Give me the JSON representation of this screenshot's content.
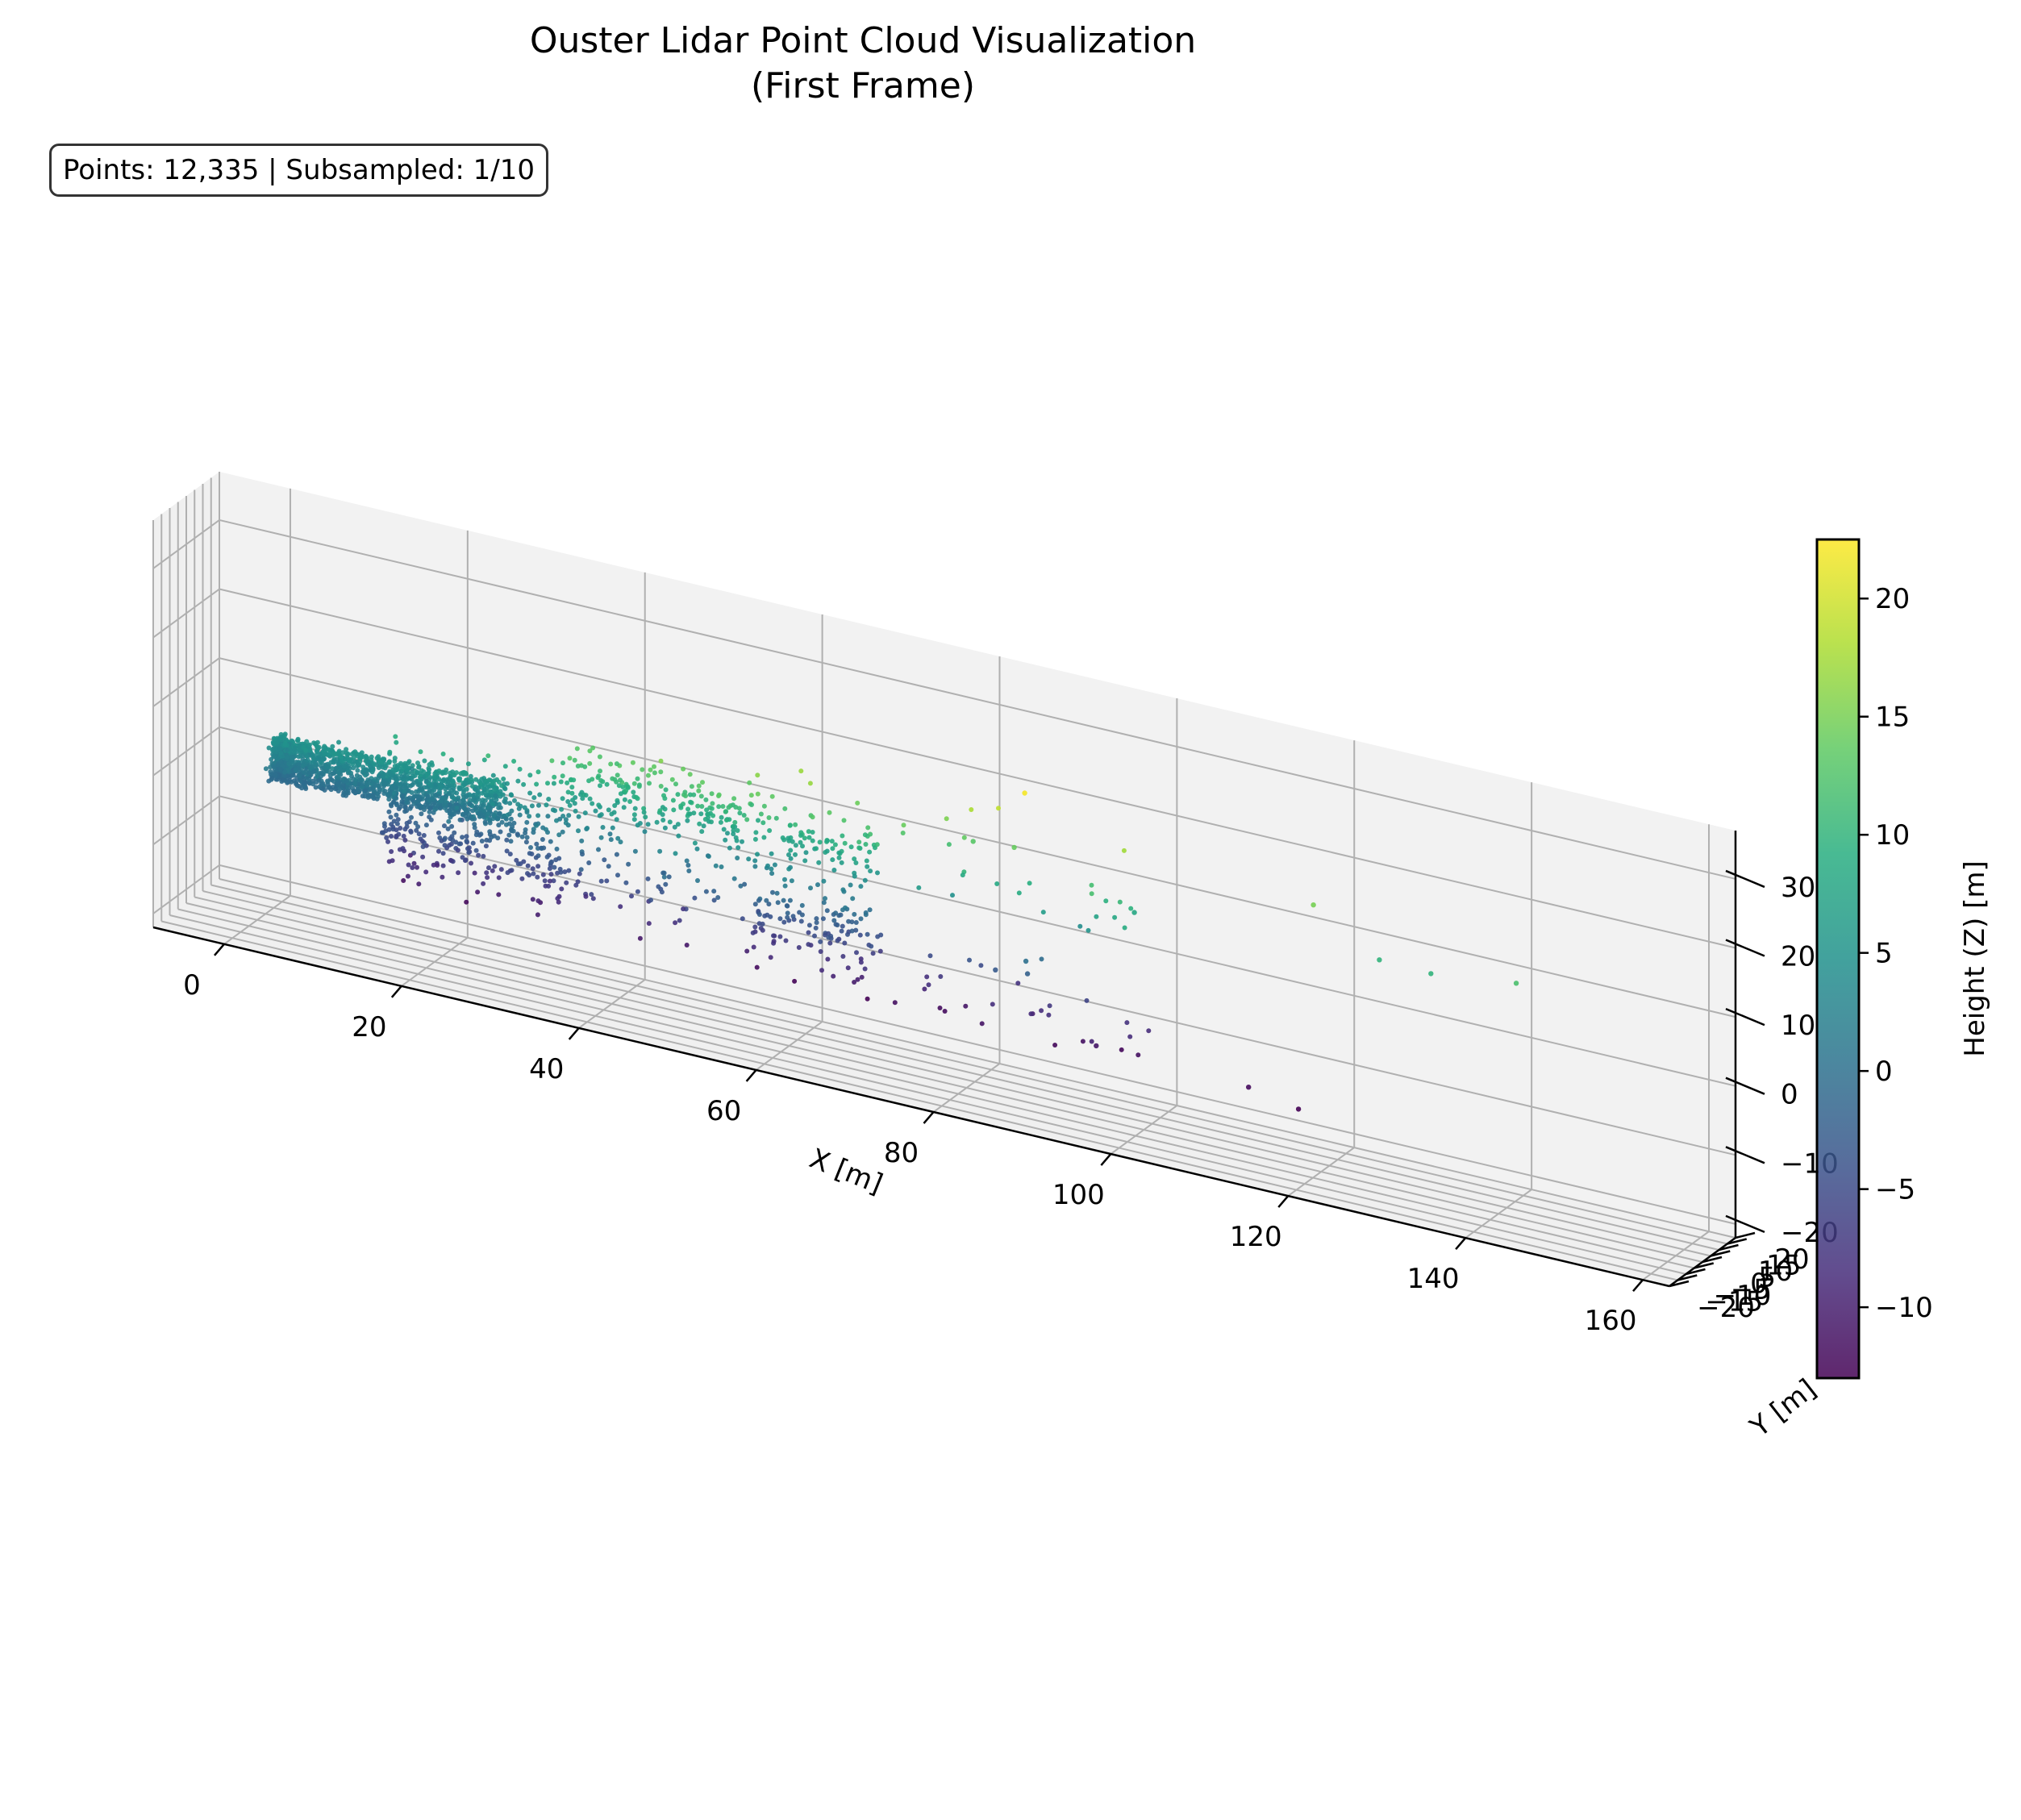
{
  "chart_data": {
    "type": "scatter",
    "title": [
      "Ouster Lidar Point Cloud Visualization",
      "(First Frame)"
    ],
    "annotation": "Points: 12,335 | Subsampled: 1/10",
    "xlabel": "X [m]",
    "ylabel": "Y [m]",
    "zlabel": "",
    "xlim": [
      -8,
      163
    ],
    "ylim": [
      -20,
      20
    ],
    "zlim": [
      -22,
      37
    ],
    "x_ticks": [
      "0",
      "20",
      "40",
      "60",
      "80",
      "100",
      "120",
      "140",
      "160"
    ],
    "y_ticks": [
      "−20",
      "−15",
      "−10",
      "−5",
      "0",
      "5",
      "10",
      "15",
      "20"
    ],
    "z_ticks": [
      "−20",
      "−10",
      "0",
      "10",
      "20",
      "30"
    ],
    "colorbar": {
      "label": "Height (Z) [m]",
      "colormap": "viridis",
      "range": [
        -13,
        22.5
      ],
      "ticks": [
        "−10",
        "−5",
        "0",
        "5",
        "10",
        "15",
        "20"
      ]
    },
    "grid": true,
    "point_cloud": {
      "description_in_data_units": "dense cluster near X 0-20, sparse points out to X 160",
      "outliers": [
        {
          "x": 98,
          "y": 5,
          "z": 8
        },
        {
          "x": 118,
          "y": 6,
          "z": 15
        },
        {
          "x": 126,
          "y": 3,
          "z": 10
        },
        {
          "x": 132,
          "y": 2,
          "z": 10
        },
        {
          "x": 142,
          "y": 0,
          "z": 12
        },
        {
          "x": 95,
          "y": -2,
          "z": -11
        },
        {
          "x": 112,
          "y": -1,
          "z": -12
        },
        {
          "x": 118,
          "y": -3,
          "z": -13
        },
        {
          "x": 84,
          "y": -4,
          "z": -3
        },
        {
          "x": 88,
          "y": -6,
          "z": -2
        },
        {
          "x": 88,
          "y": -7,
          "z": 0
        },
        {
          "x": 85,
          "y": 2,
          "z": 14
        },
        {
          "x": 86,
          "y": 3,
          "z": 22
        },
        {
          "x": 80,
          "y": 4,
          "z": 13
        }
      ]
    }
  }
}
